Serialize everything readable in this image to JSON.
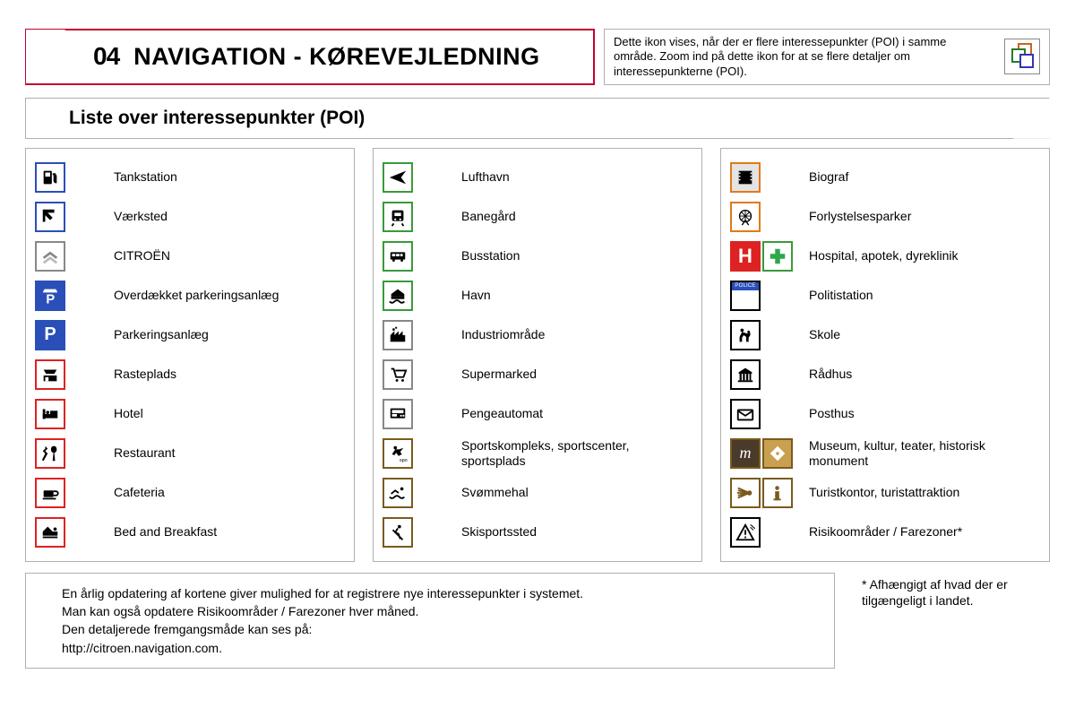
{
  "header": {
    "chapter_num": "04",
    "chapter_title": "NAVIGATION - KØREVEJLEDNING"
  },
  "info_callout": "Dette ikon vises, når der er flere interessepunkter (POI) i samme område. Zoom ind på dette ikon for at se flere detaljer om interessepunkterne (POI).",
  "subtitle": "Liste over interessepunkter (POI)",
  "columns": [
    {
      "items": [
        {
          "label": "Tankstation",
          "icons": [
            {
              "border": "bc-blue",
              "svg": "fuel"
            }
          ]
        },
        {
          "label": "Værksted",
          "icons": [
            {
              "border": "bc-blue",
              "svg": "wrench"
            }
          ]
        },
        {
          "label": "CITROËN",
          "icons": [
            {
              "border": "bc-gray",
              "svg": "chevrons"
            }
          ]
        },
        {
          "label": "Overdækket parkeringsanlæg",
          "icons": [
            {
              "border": "bc-blue",
              "fill": "fill-blue",
              "svg": "p-roof"
            }
          ]
        },
        {
          "label": "Parkeringsanlæg",
          "icons": [
            {
              "border": "bc-blue",
              "fill": "fill-blue",
              "svg": "p"
            }
          ]
        },
        {
          "label": "Rasteplads",
          "icons": [
            {
              "border": "bc-red",
              "svg": "rest"
            }
          ]
        },
        {
          "label": "Hotel",
          "icons": [
            {
              "border": "bc-red",
              "svg": "bed"
            }
          ]
        },
        {
          "label": "Restaurant",
          "icons": [
            {
              "border": "bc-red",
              "svg": "cutlery"
            }
          ]
        },
        {
          "label": "Cafeteria",
          "icons": [
            {
              "border": "bc-red",
              "svg": "cup"
            }
          ]
        },
        {
          "label": "Bed and Breakfast",
          "icons": [
            {
              "border": "bc-red",
              "svg": "bnb"
            }
          ]
        }
      ]
    },
    {
      "items": [
        {
          "label": "Lufthavn",
          "icons": [
            {
              "border": "bc-green",
              "svg": "plane"
            }
          ]
        },
        {
          "label": "Banegård",
          "icons": [
            {
              "border": "bc-green",
              "svg": "train"
            }
          ]
        },
        {
          "label": "Busstation",
          "icons": [
            {
              "border": "bc-green",
              "svg": "bus"
            }
          ]
        },
        {
          "label": "Havn",
          "icons": [
            {
              "border": "bc-green",
              "svg": "harbor"
            }
          ]
        },
        {
          "label": "Industriområde",
          "icons": [
            {
              "border": "bc-gray",
              "svg": "industry"
            }
          ]
        },
        {
          "label": "Supermarked",
          "icons": [
            {
              "border": "bc-gray",
              "svg": "cart"
            }
          ]
        },
        {
          "label": "Pengeautomat",
          "icons": [
            {
              "border": "bc-gray",
              "svg": "atm"
            }
          ]
        },
        {
          "label": "Sportskompleks, sportscenter, sportsplads",
          "icons": [
            {
              "border": "bc-brown",
              "svg": "sport"
            }
          ]
        },
        {
          "label": "Svømmehal",
          "icons": [
            {
              "border": "bc-brown",
              "svg": "swim"
            }
          ]
        },
        {
          "label": "Skisportssted",
          "icons": [
            {
              "border": "bc-brown",
              "svg": "ski"
            }
          ]
        }
      ]
    },
    {
      "items": [
        {
          "label": "Biograf",
          "icons": [
            {
              "border": "bc-orange",
              "fill": "fill-gray",
              "svg": "cinema"
            }
          ]
        },
        {
          "label": "Forlystelsesparker",
          "icons": [
            {
              "border": "bc-orange",
              "svg": "ferris"
            }
          ]
        },
        {
          "label": "Hospital, apotek, dyreklinik",
          "icons": [
            {
              "border": "bc-red",
              "fill": "fill-red",
              "svg": "H"
            },
            {
              "border": "bc-green",
              "svg": "greencross"
            }
          ]
        },
        {
          "label": "Politistation",
          "icons": [
            {
              "border": "bc-black",
              "svg": "police"
            }
          ]
        },
        {
          "label": "Skole",
          "icons": [
            {
              "border": "bc-black",
              "svg": "school"
            }
          ]
        },
        {
          "label": "Rådhus",
          "icons": [
            {
              "border": "bc-black",
              "svg": "townhall"
            }
          ]
        },
        {
          "label": "Posthus",
          "icons": [
            {
              "border": "bc-black",
              "svg": "post"
            }
          ]
        },
        {
          "label": "Museum, kultur, teater, historisk monument",
          "icons": [
            {
              "border": "bc-brown",
              "fill": "fill-brown",
              "svg": "m"
            },
            {
              "border": "bc-brown",
              "fill": "fill-gold",
              "svg": "diamond"
            }
          ]
        },
        {
          "label": "Turistkontor, turistattraktion",
          "icons": [
            {
              "border": "bc-brown",
              "svg": "sun"
            },
            {
              "border": "bc-brown",
              "svg": "info"
            }
          ]
        },
        {
          "label": "Risikoområder / Farezoner*",
          "icons": [
            {
              "border": "bc-black",
              "svg": "warn"
            }
          ]
        }
      ]
    }
  ],
  "note": {
    "line1": "En årlig opdatering af kortene giver mulighed for at registrere nye interessepunkter i systemet.",
    "line2": "Man kan også opdatere Risikoområder / Farezoner hver måned.",
    "line3": "Den detaljerede fremgangsmåde kan ses på:",
    "line4": "http://citroen.navigation.com."
  },
  "asterisk": "* Afhængigt af hvad der er tilgængeligt i landet."
}
